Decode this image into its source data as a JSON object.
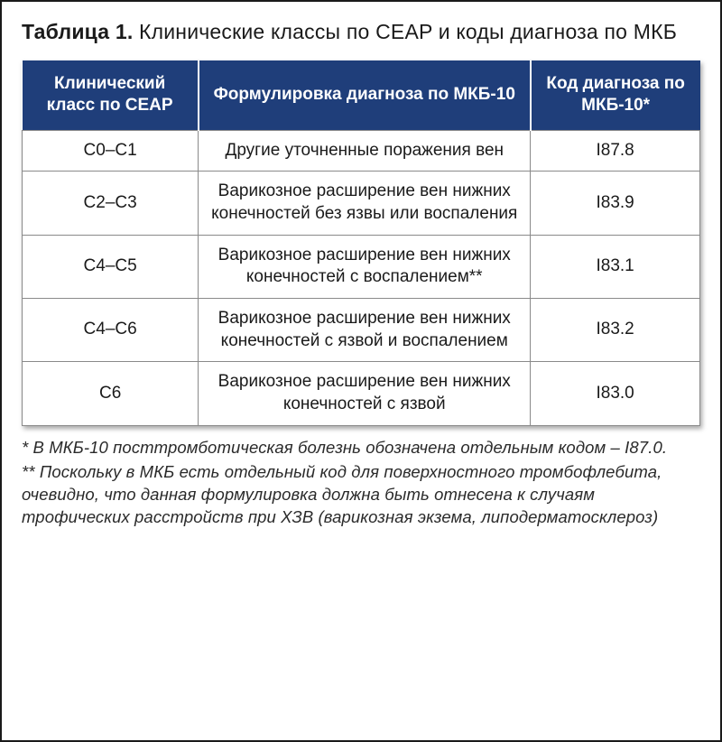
{
  "caption": {
    "label": "Таблица 1.",
    "text": " Клинические классы по CEAP и коды диагноза по МКБ"
  },
  "table": {
    "header_bg": "#1f3e7a",
    "header_fg": "#ffffff",
    "border_color": "#8a8a8a",
    "col_widths_pct": [
      26,
      49,
      25
    ],
    "columns": [
      "Клинический класс по CEAP",
      "Формулировка диагноза по МКБ-10",
      "Код диагноза по МКБ-10*"
    ],
    "rows": [
      [
        "C0–C1",
        "Другие уточненные поражения вен",
        "I87.8"
      ],
      [
        "C2–C3",
        "Варикозное расширение вен нижних конечностей без язвы или воспаления",
        "I83.9"
      ],
      [
        "C4–C5",
        "Варикозное расширение вен нижних конечностей с воспалением**",
        "I83.1"
      ],
      [
        "C4–C6",
        "Варикозное расширение вен нижних конечностей с язвой и воспалением",
        "I83.2"
      ],
      [
        "C6",
        "Варикозное расширение вен нижних конечностей с язвой",
        "I83.0"
      ]
    ]
  },
  "footnotes": [
    "* В МКБ-10 посттромботическая болезнь обозначена отдельным кодом – I87.0.",
    "** Поскольку в МКБ есть отдельный код для поверхностного тромбофлебита, очевидно, что данная формулировка должна быть отнесена к случаям трофических расстройств при ХЗВ (варикозная экзема, липодерматосклероз)"
  ]
}
